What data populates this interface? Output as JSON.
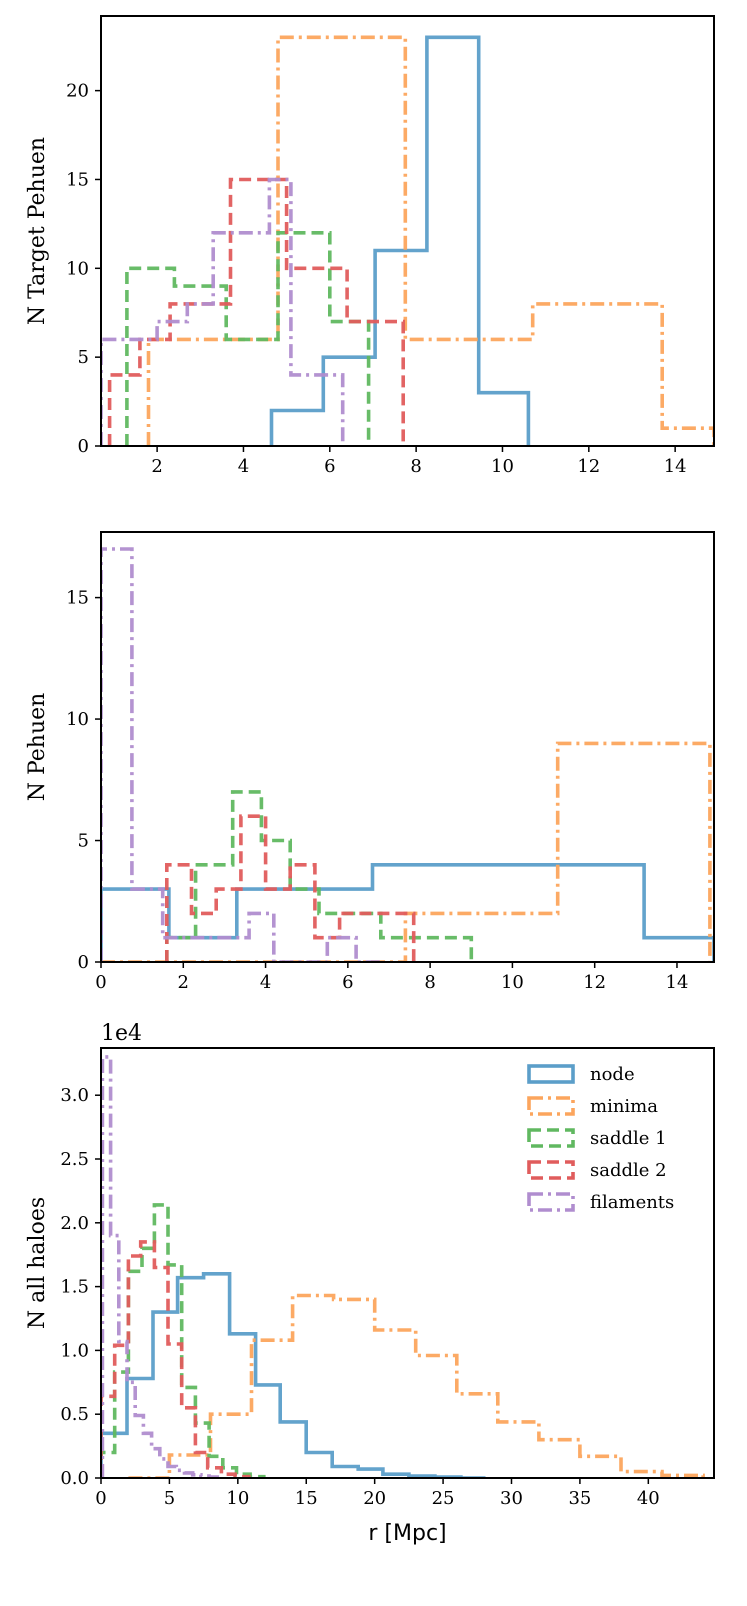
{
  "colors": {
    "node": "#5b9ec9",
    "minima": "#fca55d",
    "saddle 1": "#60b860",
    "saddle 2": "#e05c5c",
    "filaments": "#b08dcf"
  },
  "styles": {
    "node": "solid",
    "minima": "dashdot",
    "saddle 1": "dashed",
    "saddle 2": "dashed",
    "filaments": "dashdot"
  },
  "chart_data": [
    {
      "type": "histogram-step",
      "title": "",
      "ylabel": "N Target Pehuen",
      "xlabel": "",
      "xlim": [
        0.7,
        14.9
      ],
      "ylim": [
        0,
        24.2
      ],
      "xticks": [
        2,
        4,
        6,
        8,
        10,
        12,
        14
      ],
      "xtick_labels": [
        "2",
        "4",
        "6",
        "8",
        "10",
        "12",
        "14"
      ],
      "yticks": [
        0,
        5,
        10,
        15,
        20
      ],
      "ytick_labels": [
        "0",
        "5",
        "10",
        "15",
        "20"
      ],
      "offset_text": "",
      "series": [
        {
          "name": "node",
          "edges": [
            4.65,
            5.85,
            7.05,
            8.25,
            9.45,
            10.6
          ],
          "counts": [
            2,
            5,
            11,
            23,
            3
          ]
        },
        {
          "name": "minima",
          "edges": [
            1.8,
            4.8,
            7.75,
            10.7,
            13.7,
            14.9
          ],
          "counts": [
            6,
            23,
            6,
            8,
            1
          ]
        },
        {
          "name": "saddle 1",
          "edges": [
            1.3,
            2.4,
            3.6,
            4.8,
            6.0,
            6.9
          ],
          "counts": [
            10,
            9,
            6,
            12,
            7
          ]
        },
        {
          "name": "saddle 2",
          "edges": [
            0.9,
            1.6,
            2.3,
            3.0,
            3.7,
            4.3,
            5.0,
            5.7,
            6.4,
            7.0,
            7.7
          ],
          "counts": [
            4,
            6,
            8,
            8,
            15,
            15,
            10,
            10,
            7,
            7
          ]
        },
        {
          "name": "filaments",
          "edges": [
            0.7,
            1.4,
            2.0,
            2.7,
            3.3,
            4.0,
            4.6,
            5.1,
            5.7,
            6.3
          ],
          "counts": [
            6,
            6,
            7,
            8,
            12,
            12,
            15,
            4,
            4
          ]
        }
      ]
    },
    {
      "type": "histogram-step",
      "title": "",
      "ylabel": "N Pehuen",
      "xlabel": "",
      "xlim": [
        0,
        14.9
      ],
      "ylim": [
        0,
        17.7
      ],
      "xticks": [
        0,
        2,
        4,
        6,
        8,
        10,
        12,
        14
      ],
      "xtick_labels": [
        "0",
        "2",
        "4",
        "6",
        "8",
        "10",
        "12",
        "14"
      ],
      "yticks": [
        0,
        5,
        10,
        15
      ],
      "ytick_labels": [
        "0",
        "5",
        "10",
        "15"
      ],
      "offset_text": "",
      "series": [
        {
          "name": "node",
          "edges": [
            0.0,
            1.65,
            3.3,
            4.95,
            6.6,
            8.25,
            9.9,
            11.55,
            13.2,
            14.9
          ],
          "counts": [
            3,
            1,
            3,
            3,
            4,
            4,
            4,
            4,
            1
          ]
        },
        {
          "name": "minima",
          "edges": [
            0.0,
            3.7,
            7.4,
            11.1,
            14.8
          ],
          "counts": [
            0,
            0,
            2,
            9
          ]
        },
        {
          "name": "saddle 1",
          "edges": [
            1.6,
            2.3,
            3.2,
            3.9,
            4.6,
            5.3,
            6.0,
            6.8,
            9.0
          ],
          "counts": [
            1,
            4,
            7,
            5,
            3,
            2,
            2,
            1
          ]
        },
        {
          "name": "saddle 2",
          "edges": [
            1.6,
            2.2,
            2.8,
            3.4,
            4.0,
            4.6,
            5.2,
            5.8,
            6.4,
            7.0,
            7.6
          ],
          "counts": [
            4,
            2,
            3,
            6,
            3,
            4,
            1,
            2,
            2,
            2
          ]
        },
        {
          "name": "filaments",
          "edges": [
            0.0,
            0.75,
            1.5,
            2.2,
            2.9,
            3.6,
            4.2,
            4.8,
            5.5,
            6.2,
            6.9
          ],
          "counts": [
            17,
            3,
            1,
            1,
            1,
            2,
            0,
            0,
            1,
            0
          ]
        }
      ]
    },
    {
      "type": "histogram-step",
      "title": "",
      "ylabel": "N all haloes",
      "xlabel": "r [Mpc]",
      "xlim": [
        0,
        44.8
      ],
      "ylim": [
        0,
        33700
      ],
      "xticks": [
        0,
        5,
        10,
        15,
        20,
        25,
        30,
        35,
        40
      ],
      "xtick_labels": [
        "0",
        "5",
        "10",
        "15",
        "20",
        "25",
        "30",
        "35",
        "40"
      ],
      "yticks": [
        0,
        5000,
        10000,
        15000,
        20000,
        25000,
        30000
      ],
      "ytick_labels": [
        "0.0",
        "0.5",
        "1.0",
        "1.5",
        "2.0",
        "2.5",
        "3.0"
      ],
      "offset_text": "1e4",
      "legend": {
        "position": "top-right",
        "entries": [
          "node",
          "minima",
          "saddle 1",
          "saddle 2",
          "filaments"
        ]
      },
      "series": [
        {
          "name": "node",
          "edges": [
            0,
            1.9,
            3.8,
            5.6,
            7.5,
            9.4,
            11.3,
            13.1,
            15.0,
            16.9,
            18.8,
            20.6,
            22.5,
            24.4,
            26.3,
            28.1
          ],
          "counts": [
            3500,
            7800,
            13000,
            15700,
            16000,
            11300,
            7300,
            4400,
            2000,
            900,
            700,
            300,
            150,
            80,
            0
          ]
        },
        {
          "name": "minima",
          "edges": [
            2,
            5,
            8,
            11,
            14,
            17,
            20,
            23,
            26,
            29,
            32,
            35,
            38,
            41,
            44
          ],
          "counts": [
            0,
            1800,
            5000,
            10800,
            14300,
            14000,
            11600,
            9600,
            6600,
            4400,
            3000,
            1700,
            500,
            200
          ]
        },
        {
          "name": "saddle 1",
          "edges": [
            0,
            1.0,
            2.0,
            3.0,
            3.9,
            4.9,
            5.9,
            6.9,
            7.9,
            8.9,
            9.9,
            10.9,
            11.9
          ],
          "counts": [
            2000,
            8300,
            16200,
            18000,
            21400,
            16700,
            7100,
            4300,
            1700,
            800,
            300,
            100
          ]
        },
        {
          "name": "saddle 2",
          "edges": [
            0,
            1.0,
            2.0,
            2.9,
            3.9,
            4.9,
            5.9,
            6.9,
            7.8,
            8.8,
            9.8,
            10.8
          ],
          "counts": [
            6400,
            10400,
            17400,
            18500,
            16500,
            10500,
            5500,
            2000,
            800,
            300,
            100
          ]
        },
        {
          "name": "filaments",
          "edges": [
            0.1,
            0.7,
            1.3,
            1.9,
            2.5,
            3.1,
            3.7,
            4.3,
            4.9,
            5.5,
            6.1,
            6.7,
            7.3,
            7.9,
            8.5
          ],
          "counts": [
            33000,
            19000,
            10700,
            7500,
            4900,
            3500,
            2300,
            1500,
            900,
            600,
            400,
            250,
            150,
            80
          ]
        }
      ]
    }
  ]
}
